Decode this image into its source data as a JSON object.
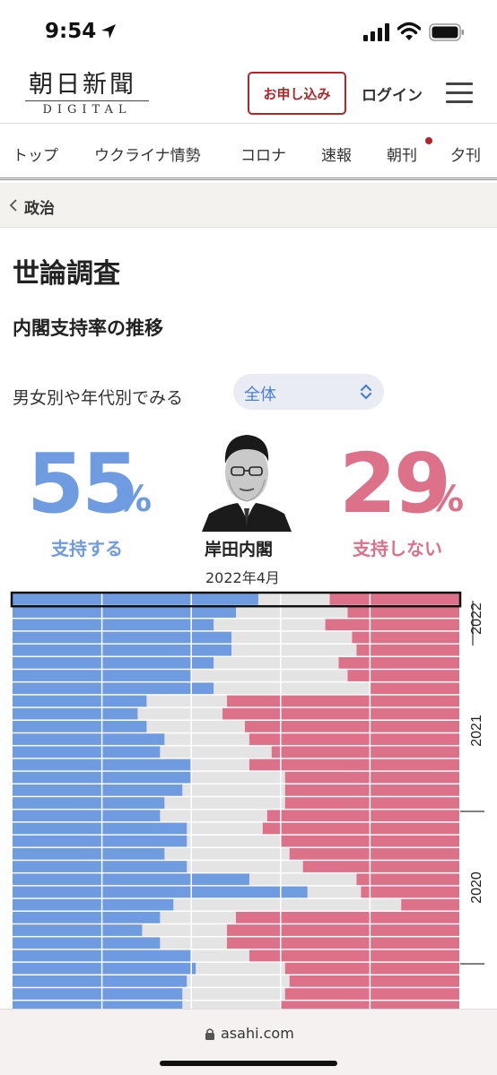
{
  "status": {
    "time": "9:54"
  },
  "header": {
    "logo_main": "朝日新聞",
    "logo_sub": "DIGITAL",
    "apply_label": "お申し込み",
    "login_label": "ログイン"
  },
  "nav": {
    "tabs": [
      {
        "label": "トップ"
      },
      {
        "label": "ウクライナ情勢"
      },
      {
        "label": "コロナ"
      },
      {
        "label": "速報"
      },
      {
        "label": "朝刊"
      },
      {
        "label": "夕刊"
      }
    ]
  },
  "breadcrumb": {
    "label": "政治"
  },
  "page": {
    "title": "世論調査",
    "section_title": "内閣支持率の推移"
  },
  "filter": {
    "label": "男女別や年代別でみる",
    "selected": "全体"
  },
  "summary": {
    "support_value": "55",
    "support_unit": "%",
    "support_label": "支持する",
    "oppose_value": "29",
    "oppose_unit": "%",
    "oppose_label": "支持しない",
    "cabinet_name": "岸田内閣",
    "date": "2022年4月"
  },
  "colors": {
    "support": "#6f9be0",
    "oppose": "#dc7189",
    "neutral": "#e4e4e4",
    "brand": "#b1262b"
  },
  "chart_data": {
    "type": "bar",
    "orientation": "horizontal-stacked",
    "xlim": [
      0,
      100
    ],
    "y_tick_labels": [
      "2022",
      "2021",
      "2020"
    ],
    "series": [
      {
        "name": "支持する",
        "values": [
          55,
          50,
          45,
          49,
          49,
          45,
          40,
          45,
          30,
          28,
          30,
          34,
          33,
          40,
          40,
          38,
          34,
          33,
          39,
          39,
          34,
          39,
          53,
          66,
          36,
          33,
          29,
          33,
          40,
          41,
          39,
          38,
          38,
          37,
          45,
          44
        ]
      },
      {
        "name": "支持しない",
        "values": [
          29,
          25,
          30,
          24,
          23,
          27,
          25,
          20,
          52,
          53,
          48,
          47,
          42,
          47,
          39,
          39,
          39,
          43,
          44,
          40,
          38,
          35,
          23,
          22,
          13,
          50,
          52,
          52,
          47,
          39,
          38,
          39,
          40,
          40,
          36,
          32
        ]
      }
    ],
    "note": "rows run top (most recent) to bottom (older); remainder is neutral"
  },
  "url_bar": {
    "url": "asahi.com"
  }
}
